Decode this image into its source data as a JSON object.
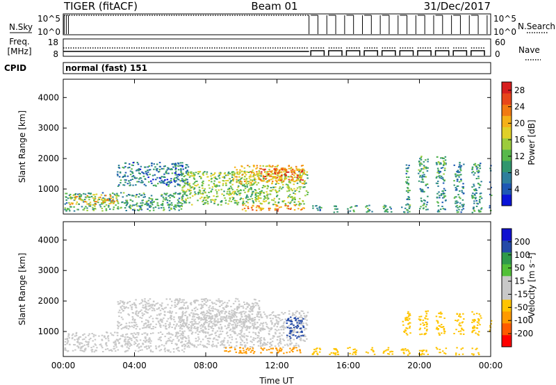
{
  "header": {
    "station": "TIGER (fitACF)",
    "beam": "Beam 01",
    "date": "31/Dec/2017"
  },
  "strip": {
    "nsky_label": "N.Sky",
    "nsearch_label": "N.Search",
    "freq_label_line1": "Freq.",
    "freq_label_line2": "[MHz]",
    "nave_label": "Nave",
    "cpid_label": "CPID",
    "cpid_text": "normal (fast) 151",
    "nsky_ticks": [
      "10^5",
      "10^0"
    ],
    "nsearch_ticks": [
      "10^5",
      "10^0"
    ],
    "freq_ticks": [
      "18",
      "8"
    ],
    "nave_ticks": [
      "60",
      "0"
    ]
  },
  "chart_data": [
    {
      "type": "heatmap",
      "name": "power",
      "ylabel": "Slant Range [km]",
      "xlabel": "",
      "x_tick_labels": [
        "00:00",
        "04:00",
        "08:00",
        "12:00",
        "16:00",
        "20:00",
        "00:00"
      ],
      "x_ticks_hours": [
        0,
        4,
        8,
        12,
        16,
        20,
        24
      ],
      "xlim_hours": [
        0,
        24
      ],
      "y_tick_labels": [
        "1000",
        "2000",
        "3000",
        "4000"
      ],
      "y_ticks_km": [
        1000,
        2000,
        3000,
        4000
      ],
      "ylim_km": [
        180,
        4600
      ],
      "colorbar": {
        "label": "Power [dB]",
        "tick_labels": [
          "4",
          "8",
          "12",
          "16",
          "20",
          "24",
          "28"
        ],
        "range": [
          0,
          30
        ],
        "colors": [
          "#0a14d8",
          "#1e58b4",
          "#2e7f9c",
          "#31966e",
          "#58b84a",
          "#9ccc3c",
          "#e0d028",
          "#f5b117",
          "#f27a12",
          "#e8461a",
          "#d71e1e"
        ]
      },
      "regions": [
        {
          "t": [
            0.05,
            6.8
          ],
          "r": [
            300,
            900
          ],
          "v": 10
        },
        {
          "t": [
            0.3,
            3.0
          ],
          "r": [
            500,
            850
          ],
          "v": 19
        },
        {
          "t": [
            3.0,
            7.0
          ],
          "r": [
            1100,
            1900
          ],
          "v": 7
        },
        {
          "t": [
            6.5,
            13.7
          ],
          "r": [
            500,
            1600
          ],
          "v": 14
        },
        {
          "t": [
            9.5,
            13.5
          ],
          "r": [
            1200,
            1800
          ],
          "v": 19
        },
        {
          "t": [
            11.0,
            13.4
          ],
          "r": [
            1300,
            1700
          ],
          "v": 24
        },
        {
          "t": [
            10.0,
            13.5
          ],
          "r": [
            300,
            500
          ],
          "v": 22
        },
        {
          "t": [
            13.9,
            24.0
          ],
          "r": [
            250,
            500
          ],
          "v": 9
        },
        {
          "t": [
            19.2,
            24.0
          ],
          "r": [
            500,
            1900
          ],
          "v": 9
        },
        {
          "t": [
            19.6,
            21.6
          ],
          "r": [
            1700,
            2100
          ],
          "v": 12
        }
      ]
    },
    {
      "type": "heatmap",
      "name": "velocity",
      "ylabel": "Slant Range [km]",
      "xlabel": "Time UT",
      "x_tick_labels": [
        "00:00",
        "04:00",
        "08:00",
        "12:00",
        "16:00",
        "20:00",
        "00:00"
      ],
      "x_ticks_hours": [
        0,
        4,
        8,
        12,
        16,
        20,
        24
      ],
      "xlim_hours": [
        0,
        24
      ],
      "y_tick_labels": [
        "1000",
        "2000",
        "3000",
        "4000"
      ],
      "y_ticks_km": [
        1000,
        2000,
        3000,
        4000
      ],
      "ylim_km": [
        180,
        4600
      ],
      "colorbar": {
        "label": "Velocity [m s⁻¹]",
        "tick_labels": [
          "-200",
          "-100",
          "-50",
          "-15",
          "15",
          "50",
          "100",
          "200"
        ],
        "colors": [
          "#ff0000",
          "#ff5a00",
          "#ff9a00",
          "#ffc400",
          "#c8c8c8",
          "#c8c8c8",
          "#52c038",
          "#2f9a4a",
          "#244aa8",
          "#1010d0"
        ]
      },
      "regions": [
        {
          "t": [
            0.05,
            6.8
          ],
          "r": [
            350,
            1000
          ],
          "v": 0
        },
        {
          "t": [
            3.0,
            11.0
          ],
          "r": [
            1100,
            2100
          ],
          "v": 0
        },
        {
          "t": [
            6.5,
            13.7
          ],
          "r": [
            500,
            1700
          ],
          "v": 0
        },
        {
          "t": [
            9.0,
            13.5
          ],
          "r": [
            300,
            500
          ],
          "v": -70
        },
        {
          "t": [
            12.5,
            13.6
          ],
          "r": [
            800,
            1500
          ],
          "v": 120
        },
        {
          "t": [
            19.0,
            24.0
          ],
          "r": [
            900,
            1700
          ],
          "v": -40
        },
        {
          "t": [
            13.9,
            24.0
          ],
          "r": [
            250,
            500
          ],
          "v": -30
        }
      ]
    }
  ]
}
